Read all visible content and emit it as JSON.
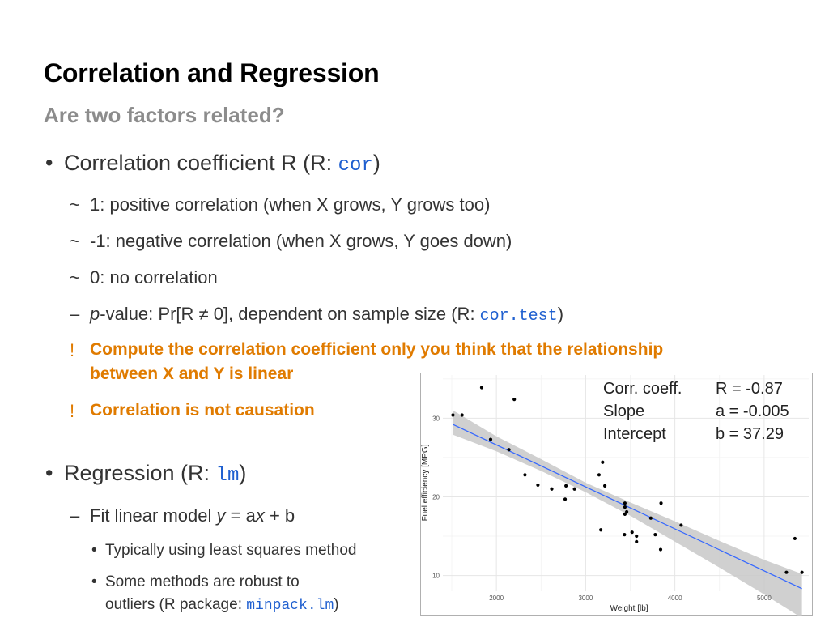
{
  "slide": {
    "title": "Correlation and Regression",
    "subtitle": "Are two factors related?"
  },
  "bullets": {
    "b1_text": "Correlation coefficient R (R: ",
    "b1_code": "cor",
    "b1_close": ")",
    "b1_marker": "•",
    "sub_marker": "~",
    "s1": "1: positive correlation (when X grows, Y grows too)",
    "s2": "-1: negative correlation (when X grows, Y goes down)",
    "s3": "0: no correlation",
    "dash": "–",
    "pval_italic": "p",
    "pval_text": "-value: Pr[R ≠ 0], dependent on sample size (R: ",
    "pval_code": "cor.test",
    "pval_close": ")",
    "warn_marker": "!",
    "warn1_line1": "Compute the correlation coefficient only you think that the relationship",
    "warn1_line2": "between X and Y is linear",
    "warn2": "Correlation is not causation",
    "b2_text": "Regression (R: ",
    "b2_code": "lm",
    "b2_close": ")",
    "fit_prefix": "Fit linear model ",
    "fit_y": "y",
    "fit_eq": " = a",
    "fit_x": "x",
    "fit_rest": " + b",
    "small_marker": "•",
    "t1": "Typically using least squares method",
    "t2_line1": "Some methods are robust to",
    "t2_line2": "outliers (R package: ",
    "t2_code": "minpack.lm",
    "t2_close": ")"
  },
  "stats": {
    "corr_label": "Corr. coeff.",
    "corr_value": "R = -0.87",
    "slope_label": "Slope",
    "slope_value": "a = -0.005",
    "intercept_label": "Intercept",
    "intercept_value": "b = 37.29"
  },
  "chart_data": {
    "type": "scatter",
    "xlabel": "Weight [lb]",
    "ylabel": "Fuel efficiency [MPG]",
    "xlim": [
      1400,
      5500
    ],
    "ylim": [
      8,
      35.5
    ],
    "xticks": [
      2000,
      3000,
      4000,
      5000
    ],
    "yticks": [
      10,
      20,
      30
    ],
    "grid": true,
    "point_color": "#000000",
    "line_color": "#3366ff",
    "band_color": "#c8c8c8",
    "points": [
      [
        2620,
        21.0
      ],
      [
        2875,
        21.0
      ],
      [
        2320,
        22.8
      ],
      [
        3215,
        21.4
      ],
      [
        3440,
        18.7
      ],
      [
        3460,
        18.1
      ],
      [
        3570,
        14.3
      ],
      [
        3190,
        24.4
      ],
      [
        3150,
        22.8
      ],
      [
        3440,
        19.2
      ],
      [
        3440,
        17.8
      ],
      [
        4070,
        16.4
      ],
      [
        3730,
        17.3
      ],
      [
        3780,
        15.2
      ],
      [
        5250,
        10.4
      ],
      [
        5424,
        10.4
      ],
      [
        5345,
        14.7
      ],
      [
        2200,
        32.4
      ],
      [
        1615,
        30.4
      ],
      [
        1835,
        33.9
      ],
      [
        2465,
        21.5
      ],
      [
        3520,
        15.5
      ],
      [
        3435,
        15.2
      ],
      [
        3840,
        13.3
      ],
      [
        3845,
        19.2
      ],
      [
        1935,
        27.3
      ],
      [
        2140,
        26.0
      ],
      [
        1513,
        30.4
      ],
      [
        3170,
        15.8
      ],
      [
        2770,
        19.7
      ],
      [
        3570,
        15.0
      ],
      [
        2780,
        21.4
      ]
    ],
    "fit": {
      "slope": -0.00534,
      "intercept": 37.29
    },
    "confidence_band": [
      [
        1513,
        27.9,
        31.0
      ],
      [
        2000,
        25.8,
        27.7
      ],
      [
        2500,
        23.3,
        24.8
      ],
      [
        3000,
        20.6,
        21.8
      ],
      [
        3500,
        17.6,
        19.3
      ],
      [
        4000,
        14.3,
        16.9
      ],
      [
        4500,
        11.0,
        14.4
      ],
      [
        5000,
        7.6,
        12.0
      ],
      [
        5424,
        4.6,
        10.2
      ]
    ]
  }
}
